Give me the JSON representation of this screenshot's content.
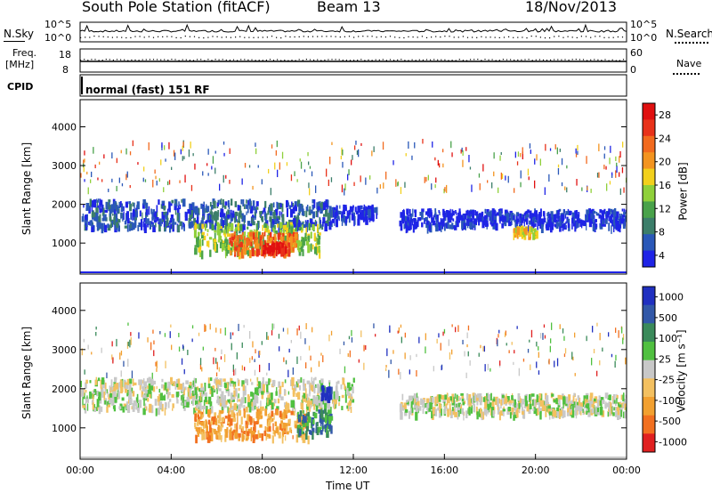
{
  "header": {
    "station": "South Pole Station (fitACF)",
    "beam": "Beam 13",
    "date": "18/Nov/2013"
  },
  "left_labels": {
    "nsky": "N.Sky",
    "nsky_top": "10^5",
    "nsky_bottom": "10^0",
    "freq": "Freq.",
    "freq_unit": "[MHz]",
    "freq_top": "18",
    "freq_bottom": "8",
    "cpid": "CPID"
  },
  "right_labels": {
    "nsearch": "N.Search",
    "nsearch_top": "10^5",
    "nsearch_bottom": "10^0",
    "nave_top": "60",
    "nave_bottom": "0",
    "nave": "Nave"
  },
  "cpid_text": "normal (fast) 151 RF",
  "chart_data": [
    {
      "type": "heatmap",
      "name": "power",
      "ylabel": "Slant Range [km]",
      "ylim": [
        200,
        4700
      ],
      "yticks": [
        1000,
        2000,
        3000,
        4000
      ],
      "xlim": [
        0,
        24
      ],
      "colorbar": {
        "label": "Power [dB]",
        "ticks": [
          "4",
          "8",
          "12",
          "16",
          "20",
          "24",
          "28"
        ],
        "colors": [
          "#1f24e6",
          "#2a58b8",
          "#3c7e6a",
          "#49a24a",
          "#8fd03a",
          "#f2d01c",
          "#f39420",
          "#f26a1e",
          "#e8321a",
          "#e01010"
        ]
      },
      "regions": [
        {
          "t0": 0.0,
          "t1": 11.0,
          "r0": 1450,
          "r1": 2150,
          "level": 1
        },
        {
          "t0": 11.0,
          "t1": 13.0,
          "r0": 1600,
          "r1": 2000,
          "level": 0
        },
        {
          "t0": 14.0,
          "t1": 24.0,
          "r0": 1450,
          "r1": 1900,
          "level": 0
        },
        {
          "t0": 5.0,
          "t1": 10.5,
          "r0": 800,
          "r1": 1550,
          "level": 4
        },
        {
          "t0": 6.5,
          "t1": 9.5,
          "r0": 800,
          "r1": 1300,
          "level": 7
        },
        {
          "t0": 8.0,
          "t1": 9.0,
          "r0": 850,
          "r1": 1050,
          "level": 9
        },
        {
          "t0": 19.0,
          "t1": 20.0,
          "r0": 1250,
          "r1": 1450,
          "level": 5
        }
      ]
    },
    {
      "type": "heatmap",
      "name": "velocity",
      "ylabel": "Slant Range [km]",
      "xlabel": "Time UT",
      "ylim": [
        200,
        4700
      ],
      "yticks": [
        1000,
        2000,
        3000,
        4000
      ],
      "xlim": [
        0,
        24
      ],
      "xticks": [
        "00:00",
        "04:00",
        "08:00",
        "12:00",
        "16:00",
        "20:00",
        "00:00"
      ],
      "colorbar": {
        "label": "Velocity [m s⁻¹]",
        "ticks": [
          "1000",
          "500",
          "100",
          "25",
          "-25",
          "-100",
          "-500",
          "-1000"
        ],
        "colors": [
          "#2030c0",
          "#3258a8",
          "#3a8a5a",
          "#50c040",
          "#c8c8c8",
          "#f3c060",
          "#f2a030",
          "#f27020",
          "#e02020"
        ]
      },
      "regions": [
        {
          "t0": 0.0,
          "t1": 12.0,
          "r0": 1500,
          "r1": 2300,
          "level": 4
        },
        {
          "t0": 14.0,
          "t1": 24.0,
          "r0": 1400,
          "r1": 1900,
          "level": 4
        },
        {
          "t0": 5.0,
          "t1": 10.0,
          "r0": 800,
          "r1": 1500,
          "level": 6
        },
        {
          "t0": 9.5,
          "t1": 11.0,
          "r0": 900,
          "r1": 1500,
          "level": 2
        },
        {
          "t0": 10.5,
          "t1": 11.0,
          "r0": 1800,
          "r1": 2100,
          "level": 0
        }
      ]
    }
  ]
}
